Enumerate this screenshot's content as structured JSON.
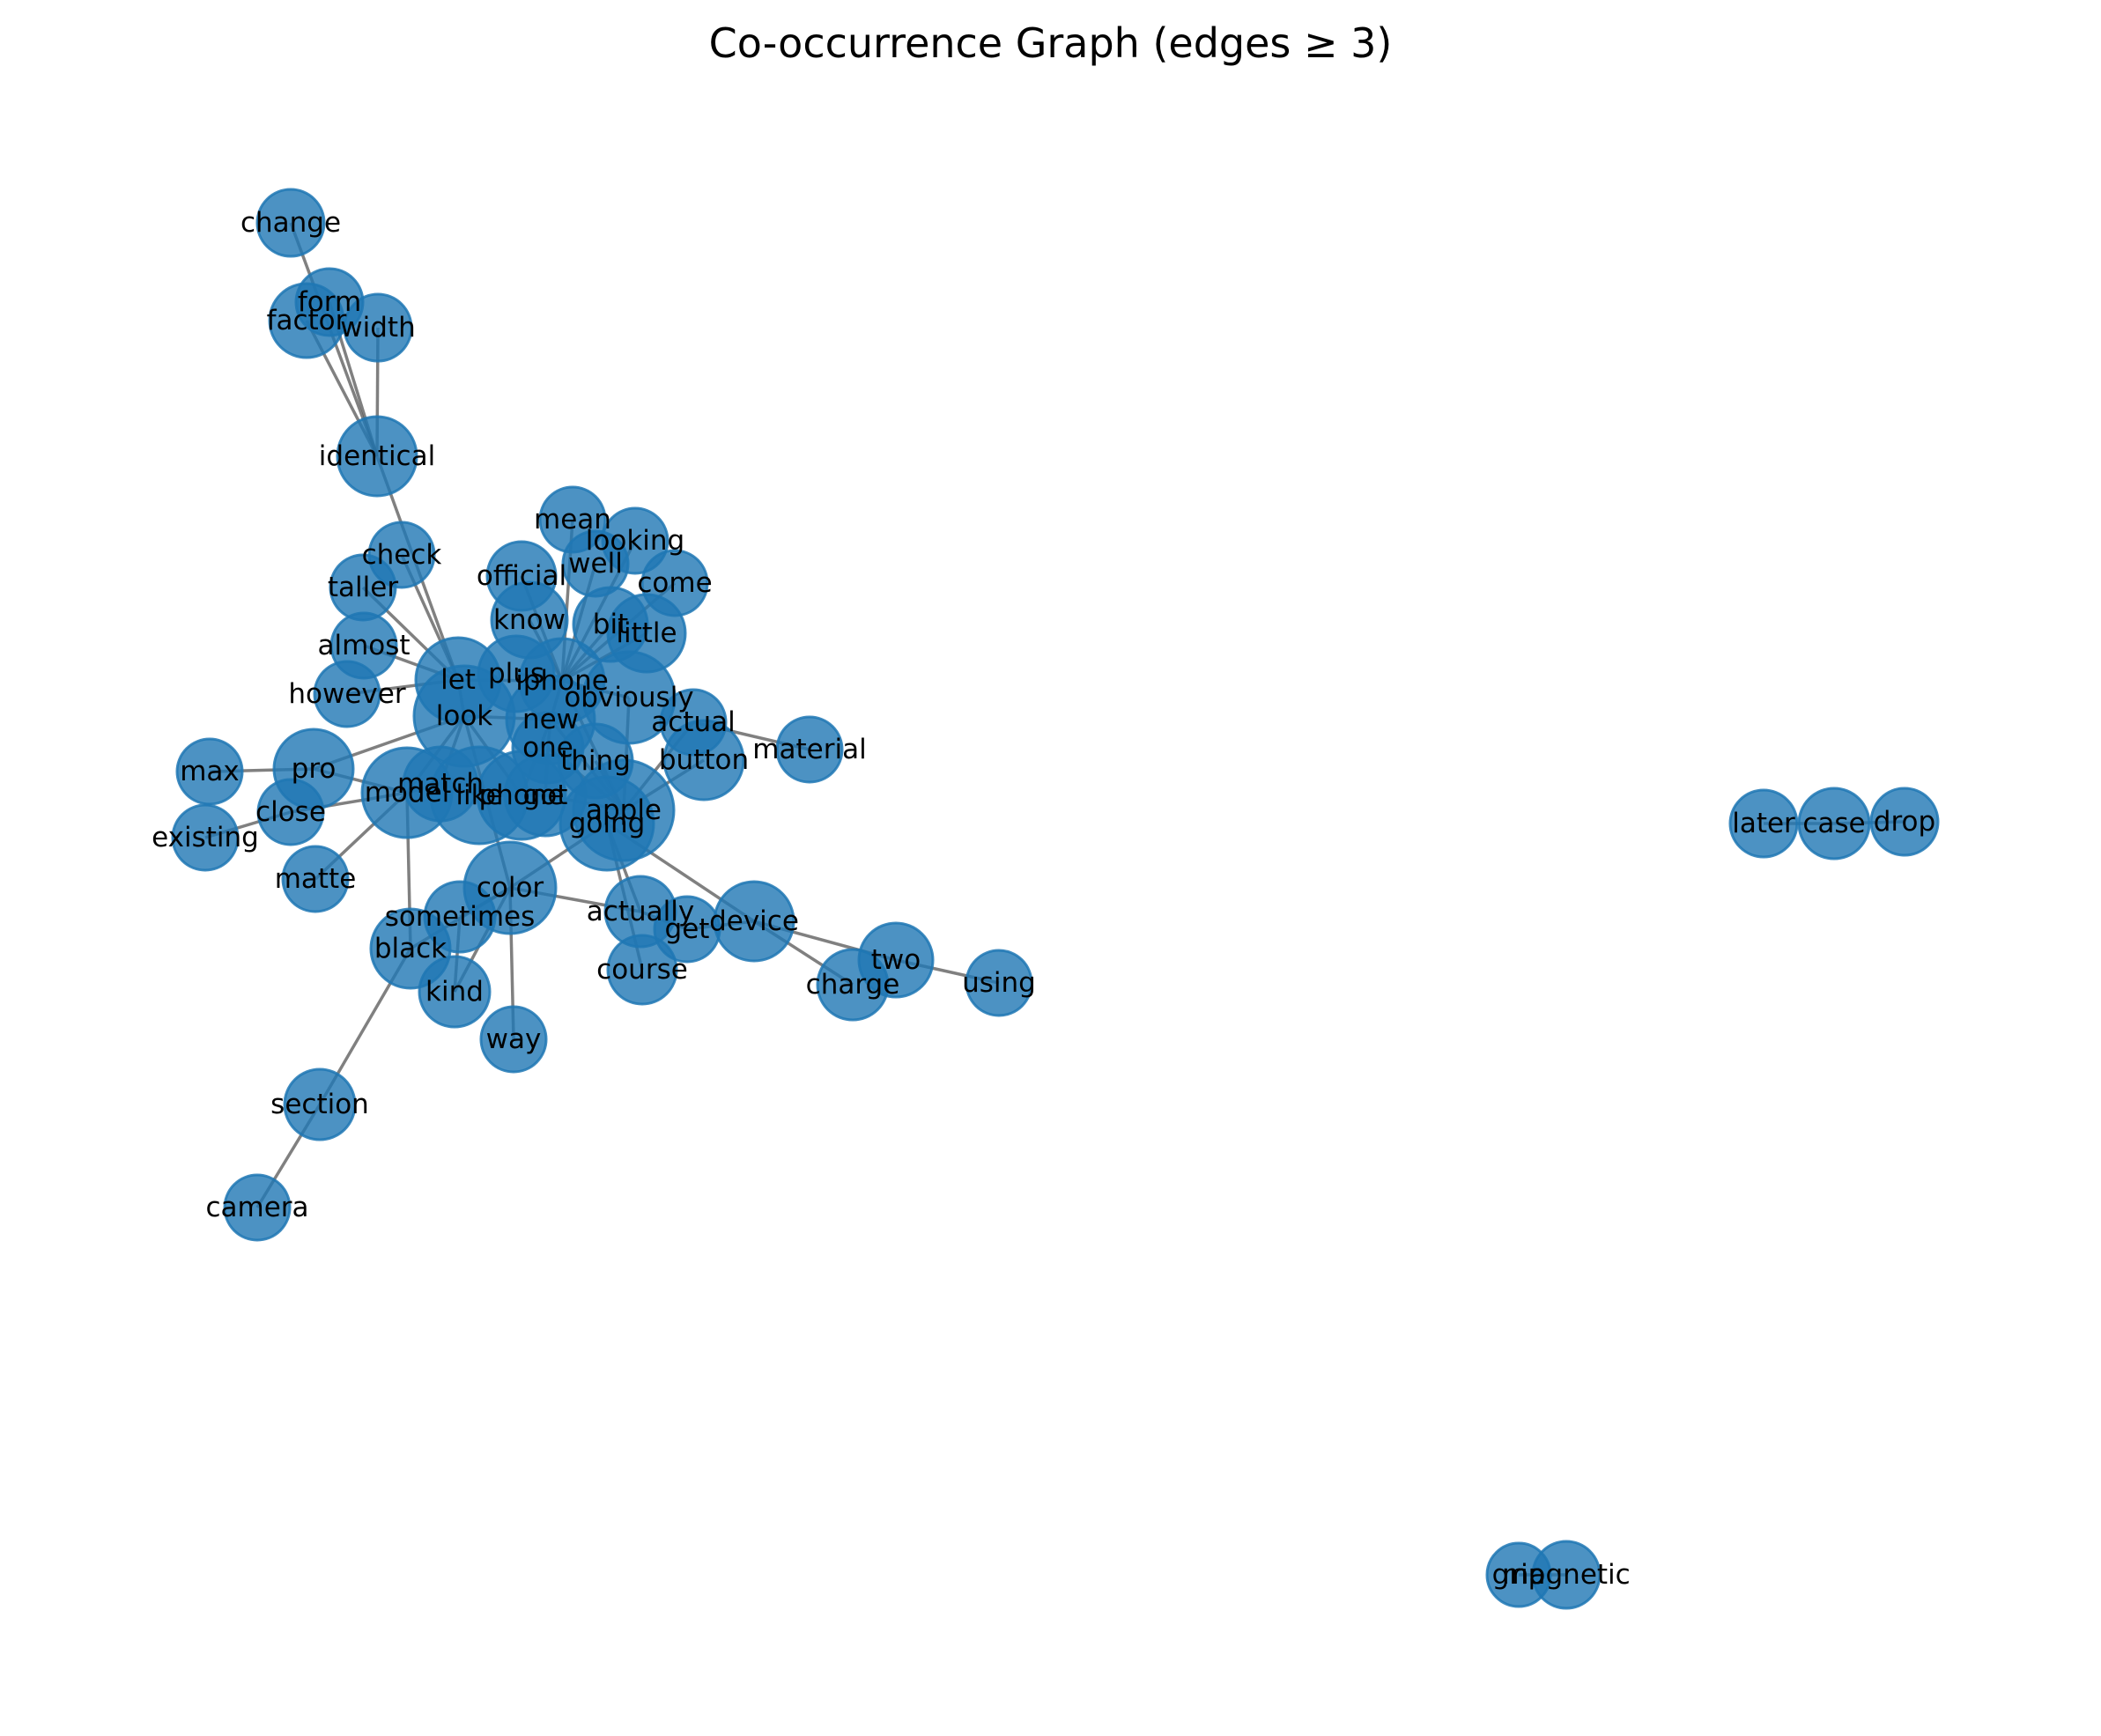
{
  "title": "Co-occurrence Graph (edges ≥ 3)",
  "node_color": "#1f77b4",
  "edge_color": "#555555",
  "nodes": [
    {
      "id": "change",
      "label": "change"
    },
    {
      "id": "form",
      "label": "form"
    },
    {
      "id": "factor",
      "label": "factor"
    },
    {
      "id": "width",
      "label": "width"
    },
    {
      "id": "identical",
      "label": "identical"
    },
    {
      "id": "mean",
      "label": "mean"
    },
    {
      "id": "looking",
      "label": "looking"
    },
    {
      "id": "check",
      "label": "check"
    },
    {
      "id": "official",
      "label": "official"
    },
    {
      "id": "well",
      "label": "well"
    },
    {
      "id": "come",
      "label": "come"
    },
    {
      "id": "taller",
      "label": "taller"
    },
    {
      "id": "know",
      "label": "know"
    },
    {
      "id": "bit",
      "label": "bit"
    },
    {
      "id": "little",
      "label": "little"
    },
    {
      "id": "almost",
      "label": "almost"
    },
    {
      "id": "plus",
      "label": "plus"
    },
    {
      "id": "let",
      "label": "let"
    },
    {
      "id": "iphone",
      "label": "iphone"
    },
    {
      "id": "however",
      "label": "however"
    },
    {
      "id": "obviously",
      "label": "obviously"
    },
    {
      "id": "look",
      "label": "look"
    },
    {
      "id": "new",
      "label": "new"
    },
    {
      "id": "actual",
      "label": "actual"
    },
    {
      "id": "one",
      "label": "one"
    },
    {
      "id": "material",
      "label": "material"
    },
    {
      "id": "max",
      "label": "max"
    },
    {
      "id": "pro",
      "label": "pro"
    },
    {
      "id": "thing",
      "label": "thing"
    },
    {
      "id": "button",
      "label": "button"
    },
    {
      "id": "match",
      "label": "match"
    },
    {
      "id": "model",
      "label": "model"
    },
    {
      "id": "like",
      "label": "like"
    },
    {
      "id": "phone",
      "label": "phone"
    },
    {
      "id": "got",
      "label": "got"
    },
    {
      "id": "apple",
      "label": "apple"
    },
    {
      "id": "close",
      "label": "close"
    },
    {
      "id": "going",
      "label": "going"
    },
    {
      "id": "existing",
      "label": "existing"
    },
    {
      "id": "matte",
      "label": "matte"
    },
    {
      "id": "color",
      "label": "color"
    },
    {
      "id": "actually",
      "label": "actually"
    },
    {
      "id": "sometimes",
      "label": "sometimes"
    },
    {
      "id": "device",
      "label": "device"
    },
    {
      "id": "get",
      "label": "get"
    },
    {
      "id": "black",
      "label": "black"
    },
    {
      "id": "two",
      "label": "two"
    },
    {
      "id": "course",
      "label": "course"
    },
    {
      "id": "charge",
      "label": "charge"
    },
    {
      "id": "using",
      "label": "using"
    },
    {
      "id": "kind",
      "label": "kind"
    },
    {
      "id": "way",
      "label": "way"
    },
    {
      "id": "section",
      "label": "section"
    },
    {
      "id": "camera",
      "label": "camera"
    },
    {
      "id": "later",
      "label": "later"
    },
    {
      "id": "case",
      "label": "case"
    },
    {
      "id": "drop",
      "label": "drop"
    },
    {
      "id": "grip",
      "label": "grip"
    },
    {
      "id": "magnetic",
      "label": "magnetic"
    }
  ],
  "edges": [
    [
      "change",
      "identical"
    ],
    [
      "form",
      "identical"
    ],
    [
      "factor",
      "identical"
    ],
    [
      "width",
      "identical"
    ],
    [
      "identical",
      "let"
    ],
    [
      "check",
      "let"
    ],
    [
      "taller",
      "let"
    ],
    [
      "almost",
      "let"
    ],
    [
      "however",
      "let"
    ],
    [
      "mean",
      "iphone"
    ],
    [
      "looking",
      "iphone"
    ],
    [
      "official",
      "iphone"
    ],
    [
      "well",
      "iphone"
    ],
    [
      "come",
      "iphone"
    ],
    [
      "know",
      "iphone"
    ],
    [
      "bit",
      "iphone"
    ],
    [
      "little",
      "iphone"
    ],
    [
      "plus",
      "iphone"
    ],
    [
      "let",
      "look"
    ],
    [
      "let",
      "iphone"
    ],
    [
      "iphone",
      "obviously"
    ],
    [
      "iphone",
      "new"
    ],
    [
      "iphone",
      "apple"
    ],
    [
      "obviously",
      "apple"
    ],
    [
      "look",
      "new"
    ],
    [
      "look",
      "model"
    ],
    [
      "look",
      "color"
    ],
    [
      "look",
      "phone"
    ],
    [
      "new",
      "one"
    ],
    [
      "new",
      "phone"
    ],
    [
      "one",
      "got"
    ],
    [
      "one",
      "apple"
    ],
    [
      "thing",
      "apple"
    ],
    [
      "actual",
      "material"
    ],
    [
      "actual",
      "apple"
    ],
    [
      "button",
      "apple"
    ],
    [
      "max",
      "pro"
    ],
    [
      "pro",
      "look"
    ],
    [
      "pro",
      "model"
    ],
    [
      "existing",
      "close"
    ],
    [
      "close",
      "model"
    ],
    [
      "matte",
      "model"
    ],
    [
      "model",
      "match"
    ],
    [
      "model",
      "black"
    ],
    [
      "match",
      "like"
    ],
    [
      "like",
      "phone"
    ],
    [
      "phone",
      "got"
    ],
    [
      "got",
      "apple"
    ],
    [
      "apple",
      "going"
    ],
    [
      "going",
      "color"
    ],
    [
      "going",
      "device"
    ],
    [
      "going",
      "actually"
    ],
    [
      "going",
      "course"
    ],
    [
      "color",
      "sometimes"
    ],
    [
      "color",
      "way"
    ],
    [
      "color",
      "black"
    ],
    [
      "color",
      "kind"
    ],
    [
      "color",
      "actually"
    ],
    [
      "sometimes",
      "kind"
    ],
    [
      "actually",
      "get"
    ],
    [
      "device",
      "get"
    ],
    [
      "device",
      "two"
    ],
    [
      "device",
      "charge"
    ],
    [
      "two",
      "using"
    ],
    [
      "black",
      "section"
    ],
    [
      "section",
      "camera"
    ],
    [
      "later",
      "case"
    ],
    [
      "case",
      "drop"
    ],
    [
      "grip",
      "magnetic"
    ],
    [
      "look",
      "match"
    ],
    [
      "new",
      "apple"
    ]
  ]
}
